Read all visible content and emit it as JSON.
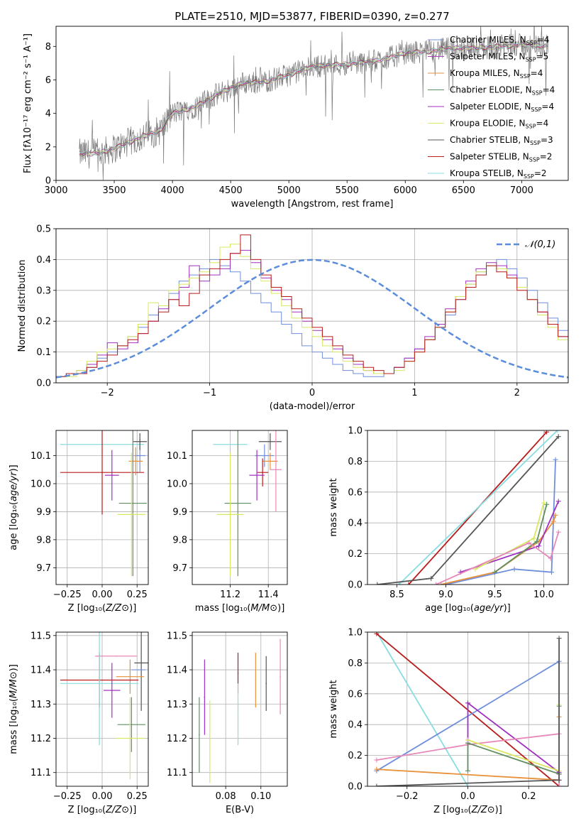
{
  "figure_title": "PLATE=2510, MJD=53877, FIBERID=0390, z=0.277",
  "palette": {
    "chabrier_miles": "#6f8fdc",
    "salpeter_miles": "#b040c0",
    "kroupa_miles": "#e8903a",
    "chabrier_elodie": "#5f8f5f",
    "salpeter_elodie": "#a030c0",
    "kroupa_elodie": "#d8e860",
    "chabrier_stelib": "#555555",
    "salpeter_stelib": "#b81c1c",
    "kroupa_stelib": "#88dde0",
    "pink": "#e888b8",
    "lime": "#b8d840",
    "gaussian": "#5b8ddb"
  },
  "chart_data": [
    {
      "id": "spectrum",
      "type": "line",
      "xlabel": "wavelength [Angstrom, rest frame]",
      "ylabel": "Flux [f_λ 10^-17 erg cm^-2 s^-1 A^-1]",
      "xlim": [
        3000,
        7400
      ],
      "ylim": [
        0,
        9.2
      ],
      "xticks": [
        3000,
        3500,
        4000,
        4500,
        5000,
        5500,
        6000,
        6500,
        7000
      ],
      "yticks": [
        0,
        2,
        4,
        6,
        8
      ],
      "grid": false,
      "legend_position": "upper-right",
      "legend": [
        "Chabrier MILES, N_SSP=4",
        "Salpeter MILES, N_SSP=5",
        "Kroupa MILES, N_SSP=4",
        "Chabrier ELODIE, N_SSP=4",
        "Salpeter ELODIE, N_SSP=4",
        "Kroupa ELODIE, N_SSP=4",
        "Chabrier STELIB, N_SSP=3",
        "Salpeter STELIB, N_SSP=2",
        "Kroupa STELIB, N_SSP=2"
      ],
      "continuum": {
        "x": [
          3200,
          3350,
          3500,
          3700,
          3900,
          4000,
          4200,
          4400,
          4600,
          4800,
          5000,
          5200,
          5400,
          5600,
          5800,
          6000,
          6200,
          6400,
          6600,
          6800,
          7000,
          7200
        ],
        "y": [
          1.6,
          1.6,
          1.9,
          2.5,
          3.0,
          4.0,
          4.4,
          5.2,
          5.8,
          5.9,
          6.3,
          6.8,
          6.9,
          7.0,
          7.2,
          7.6,
          7.7,
          7.9,
          7.9,
          8.0,
          8.1,
          8.0
        ]
      }
    },
    {
      "id": "residuals",
      "type": "line",
      "xlabel": "(data-model)/error",
      "ylabel": "Normed distribution",
      "xlim": [
        -2.5,
        2.5
      ],
      "ylim": [
        0,
        0.5
      ],
      "xticks": [
        -2,
        -1,
        0,
        1,
        2
      ],
      "yticks": [
        0.0,
        0.1,
        0.2,
        0.3,
        0.4,
        0.5
      ],
      "grid": true,
      "legend_position": "upper-right",
      "legend": [
        "𝒩(0,1)"
      ],
      "bin_width": 0.1,
      "histograms": [
        {
          "color": "chabrier_miles",
          "values": [
            0.02,
            0.03,
            0.03,
            0.05,
            0.08,
            0.1,
            0.12,
            0.15,
            0.18,
            0.22,
            0.25,
            0.29,
            0.33,
            0.35,
            0.37,
            0.4,
            0.38,
            0.36,
            0.33,
            0.29,
            0.26,
            0.23,
            0.19,
            0.16,
            0.12,
            0.1,
            0.08,
            0.06,
            0.04,
            0.03,
            0.02,
            0.02,
            0.03,
            0.05,
            0.08,
            0.11,
            0.14,
            0.18,
            0.22,
            0.27,
            0.32,
            0.36,
            0.38,
            0.4,
            0.37,
            0.34,
            0.3,
            0.26,
            0.21,
            0.17
          ]
        },
        {
          "color": "salpeter_elodie",
          "values": [
            0.02,
            0.03,
            0.04,
            0.06,
            0.09,
            0.13,
            0.11,
            0.13,
            0.16,
            0.2,
            0.24,
            0.27,
            0.31,
            0.38,
            0.33,
            0.35,
            0.37,
            0.42,
            0.43,
            0.39,
            0.34,
            0.3,
            0.27,
            0.23,
            0.2,
            0.17,
            0.14,
            0.11,
            0.08,
            0.06,
            0.04,
            0.03,
            0.03,
            0.05,
            0.08,
            0.11,
            0.15,
            0.19,
            0.24,
            0.28,
            0.33,
            0.37,
            0.39,
            0.38,
            0.35,
            0.31,
            0.27,
            0.23,
            0.19,
            0.15
          ]
        },
        {
          "color": "kroupa_elodie",
          "values": [
            0.02,
            0.02,
            0.04,
            0.07,
            0.1,
            0.11,
            0.12,
            0.15,
            0.19,
            0.26,
            0.25,
            0.3,
            0.32,
            0.34,
            0.36,
            0.39,
            0.44,
            0.45,
            0.41,
            0.37,
            0.33,
            0.29,
            0.25,
            0.21,
            0.18,
            0.15,
            0.12,
            0.1,
            0.07,
            0.05,
            0.04,
            0.03,
            0.03,
            0.04,
            0.07,
            0.1,
            0.14,
            0.18,
            0.23,
            0.28,
            0.32,
            0.36,
            0.38,
            0.37,
            0.34,
            0.31,
            0.27,
            0.22,
            0.18,
            0.14
          ]
        },
        {
          "color": "salpeter_stelib",
          "values": [
            0.02,
            0.03,
            0.03,
            0.05,
            0.07,
            0.09,
            0.12,
            0.14,
            0.16,
            0.2,
            0.23,
            0.27,
            0.25,
            0.29,
            0.35,
            0.37,
            0.4,
            0.42,
            0.48,
            0.4,
            0.35,
            0.31,
            0.28,
            0.24,
            0.21,
            0.18,
            0.15,
            0.12,
            0.09,
            0.07,
            0.05,
            0.04,
            0.03,
            0.05,
            0.07,
            0.1,
            0.14,
            0.18,
            0.23,
            0.27,
            0.31,
            0.35,
            0.38,
            0.36,
            0.34,
            0.3,
            0.27,
            0.23,
            0.19,
            0.15
          ]
        }
      ],
      "gaussian": {
        "mean": 0,
        "sigma": 1
      }
    },
    {
      "id": "age-vs-z",
      "type": "scatter",
      "xlabel": "Z [log10(Z/Z☉)]",
      "ylabel": "age [log10(age/yr)]",
      "xlim": [
        -0.33,
        0.33
      ],
      "ylim": [
        9.64,
        10.19
      ],
      "xticks": [
        -0.25,
        0.0,
        0.25
      ],
      "yticks": [
        9.7,
        9.8,
        9.9,
        10.0,
        10.1
      ],
      "grid": true,
      "points": [
        {
          "color": "kroupa_stelib",
          "x": 0.0,
          "xerr": 0.3,
          "y": 10.14,
          "yerr": 0.0
        },
        {
          "color": "salpeter_stelib",
          "x": 0.0,
          "xerr": 0.3,
          "y": 10.04,
          "yerr": 0.15
        },
        {
          "color": "chabrier_miles",
          "x": 0.27,
          "xerr": 0.04,
          "y": 10.1,
          "yerr": 0.06
        },
        {
          "color": "kroupa_miles",
          "x": 0.24,
          "xerr": 0.05,
          "y": 10.08,
          "yerr": 0.05
        },
        {
          "color": "chabrier_stelib",
          "x": 0.27,
          "xerr": 0.05,
          "y": 10.15,
          "yerr": 0.03
        },
        {
          "color": "salpeter_elodie",
          "x": 0.07,
          "xerr": 0.05,
          "y": 10.03,
          "yerr": 0.09
        },
        {
          "color": "chabrier_elodie",
          "x": 0.22,
          "xerr": 0.1,
          "y": 9.93,
          "yerr": 0.26
        },
        {
          "color": "kroupa_elodie",
          "x": 0.21,
          "xerr": 0.1,
          "y": 9.89,
          "yerr": 0.22
        }
      ]
    },
    {
      "id": "age-vs-mass",
      "type": "scatter",
      "xlabel": "mass [log10(M/M☉)]",
      "ylabel": "",
      "xlim": [
        11.0,
        11.5
      ],
      "ylim": [
        9.64,
        10.19
      ],
      "xticks": [
        11.2,
        11.4
      ],
      "yticks": [
        9.7,
        9.8,
        9.9,
        10.0,
        10.1
      ],
      "grid": true,
      "points": [
        {
          "color": "kroupa_stelib",
          "x": 11.2,
          "xerr": 0.09,
          "y": 10.14,
          "yerr": 0.0
        },
        {
          "color": "chabrier_miles",
          "x": 11.38,
          "xerr": 0.05,
          "y": 10.1,
          "yerr": 0.04
        },
        {
          "color": "kroupa_miles",
          "x": 11.41,
          "xerr": 0.04,
          "y": 10.08,
          "yerr": 0.03
        },
        {
          "color": "chabrier_stelib",
          "x": 11.41,
          "xerr": 0.06,
          "y": 10.15,
          "yerr": 0.03
        },
        {
          "color": "salpeter_stelib",
          "x": 11.37,
          "xerr": 0.03,
          "y": 10.04,
          "yerr": 0.05
        },
        {
          "color": "salpeter_elodie",
          "x": 11.34,
          "xerr": 0.04,
          "y": 10.03,
          "yerr": 0.09
        },
        {
          "color": "chabrier_elodie",
          "x": 11.24,
          "xerr": 0.07,
          "y": 9.93,
          "yerr": 0.26
        },
        {
          "color": "kroupa_elodie",
          "x": 11.2,
          "xerr": 0.07,
          "y": 9.89,
          "yerr": 0.22
        },
        {
          "color": "pink",
          "x": 11.44,
          "xerr": 0.03,
          "y": 10.05,
          "yerr": 0.15
        }
      ]
    },
    {
      "id": "massweight-vs-age",
      "type": "line",
      "xlabel": "age [log10(age/yr)]",
      "ylabel": "mass weight",
      "xlim": [
        8.2,
        10.25
      ],
      "ylim": [
        0,
        1
      ],
      "xticks": [
        8.5,
        9.0,
        9.5,
        10.0
      ],
      "yticks": [
        0.0,
        0.2,
        0.4,
        0.6,
        0.8,
        1.0
      ],
      "grid": true,
      "series": [
        {
          "color": "salpeter_stelib",
          "x": [
            8.62,
            10.03
          ],
          "y": [
            0.0,
            0.99
          ]
        },
        {
          "color": "kroupa_stelib",
          "x": [
            8.52,
            10.14
          ],
          "y": [
            0.0,
            1.0
          ]
        },
        {
          "color": "chabrier_stelib",
          "x": [
            8.3,
            8.85,
            10.15
          ],
          "y": [
            0.0,
            0.04,
            0.96
          ]
        },
        {
          "color": "chabrier_miles",
          "x": [
            9.0,
            9.7,
            10.08,
            10.12
          ],
          "y": [
            0.0,
            0.1,
            0.08,
            0.81
          ]
        },
        {
          "color": "kroupa_miles",
          "x": [
            8.95,
            9.5,
            9.95,
            10.1,
            10.12
          ],
          "y": [
            0.0,
            0.08,
            0.28,
            0.41,
            0.45
          ]
        },
        {
          "color": "salpeter_elodie",
          "x": [
            9.15,
            9.95,
            10.15
          ],
          "y": [
            0.08,
            0.25,
            0.54
          ]
        },
        {
          "color": "chabrier_elodie",
          "x": [
            9.5,
            9.93,
            10.03
          ],
          "y": [
            0.08,
            0.28,
            0.52
          ]
        },
        {
          "color": "kroupa_elodie",
          "x": [
            9.3,
            9.9,
            10.0
          ],
          "y": [
            0.1,
            0.3,
            0.53
          ]
        },
        {
          "color": "pink",
          "x": [
            8.9,
            9.85,
            10.07,
            10.15
          ],
          "y": [
            0.0,
            0.27,
            0.17,
            0.34
          ]
        }
      ]
    },
    {
      "id": "mass-vs-z",
      "type": "scatter",
      "xlabel": "Z [log10(Z/Z☉)]",
      "ylabel": "mass [log10(M/M☉)]",
      "xlim": [
        -0.33,
        0.33
      ],
      "ylim": [
        11.06,
        11.51
      ],
      "xticks": [
        -0.25,
        0.0,
        0.25
      ],
      "yticks": [
        11.1,
        11.2,
        11.3,
        11.4,
        11.5
      ],
      "grid": true,
      "points": [
        {
          "color": "pink",
          "x": 0.1,
          "xerr": 0.15,
          "y": 11.44,
          "yerr": 0.0
        },
        {
          "color": "chabrier_stelib",
          "x": 0.28,
          "xerr": 0.05,
          "y": 11.42,
          "yerr": 0.14
        },
        {
          "color": "chabrier_miles",
          "x": 0.26,
          "xerr": 0.05,
          "y": 11.4,
          "yerr": 0.0
        },
        {
          "color": "kroupa_miles",
          "x": 0.2,
          "xerr": 0.1,
          "y": 11.38,
          "yerr": 0.05
        },
        {
          "color": "salpeter_stelib",
          "x": -0.02,
          "xerr": 0.28,
          "y": 11.37,
          "yerr": 0.08
        },
        {
          "color": "kroupa_stelib",
          "x": -0.02,
          "xerr": 0.28,
          "y": 11.36,
          "yerr": 0.18
        },
        {
          "color": "salpeter_elodie",
          "x": 0.07,
          "xerr": 0.06,
          "y": 11.34,
          "yerr": 0.08
        },
        {
          "color": "chabrier_elodie",
          "x": 0.21,
          "xerr": 0.1,
          "y": 11.24,
          "yerr": 0.08
        },
        {
          "color": "kroupa_elodie",
          "x": 0.2,
          "xerr": 0.1,
          "y": 11.2,
          "yerr": 0.12
        }
      ]
    },
    {
      "id": "mass-vs-ebv",
      "type": "scatter",
      "xlabel": "E(B-V)",
      "ylabel": "",
      "xlim": [
        0.061,
        0.115
      ],
      "ylim": [
        11.06,
        11.51
      ],
      "xticks": [
        0.08,
        0.1
      ],
      "yticks": [
        11.1,
        11.2,
        11.3,
        11.4,
        11.5
      ],
      "grid": true,
      "points": [
        {
          "color": "chabrier_elodie",
          "x": 0.065,
          "y": 11.21,
          "yerr": 0.11
        },
        {
          "color": "salpeter_elodie",
          "x": 0.068,
          "y": 11.32,
          "yerr": 0.11
        },
        {
          "color": "kroupa_elodie",
          "x": 0.071,
          "y": 11.19,
          "yerr": 0.12
        },
        {
          "color": "salpeter_stelib",
          "x": 0.087,
          "y": 11.39,
          "yerr": 0.06
        },
        {
          "color": "kroupa_stelib",
          "x": 0.087,
          "y": 11.27,
          "yerr": 0.09
        },
        {
          "color": "kroupa_miles",
          "x": 0.097,
          "y": 11.37,
          "yerr": 0.08
        },
        {
          "color": "chabrier_stelib",
          "x": 0.103,
          "y": 11.36,
          "yerr": 0.08
        },
        {
          "color": "pink",
          "x": 0.111,
          "y": 11.38,
          "yerr": 0.11
        }
      ]
    },
    {
      "id": "massweight-vs-z",
      "type": "line",
      "xlabel": "Z [log10(Z/Z☉)]",
      "ylabel": "mass weight",
      "xlim": [
        -0.33,
        0.33
      ],
      "ylim": [
        0,
        1
      ],
      "xticks": [
        -0.2,
        0.0,
        0.2
      ],
      "yticks": [
        0.0,
        0.2,
        0.4,
        0.6,
        0.8,
        1.0
      ],
      "grid": true,
      "series": [
        {
          "color": "kroupa_stelib",
          "x": [
            -0.3,
            0.0
          ],
          "y": [
            1.0,
            0.0
          ]
        },
        {
          "color": "salpeter_stelib",
          "x": [
            -0.3,
            0.3
          ],
          "y": [
            0.99,
            0.0
          ]
        },
        {
          "color": "chabrier_miles",
          "x": [
            -0.3,
            0.3,
            0.3
          ],
          "y": [
            0.1,
            0.81,
            0.08
          ]
        },
        {
          "color": "salpeter_elodie",
          "x": [
            0.0,
            0.0,
            0.3,
            0.3
          ],
          "y": [
            0.28,
            0.54,
            0.09,
            0.08
          ]
        },
        {
          "color": "pink",
          "x": [
            -0.3,
            0.0,
            0.3,
            0.3
          ],
          "y": [
            0.17,
            0.27,
            0.34,
            0.0
          ]
        },
        {
          "color": "kroupa_miles",
          "x": [
            -0.3,
            0.3,
            0.3
          ],
          "y": [
            0.11,
            0.04,
            0.45
          ]
        },
        {
          "color": "chabrier_elodie",
          "x": [
            0.0,
            0.0,
            0.3,
            0.3
          ],
          "y": [
            0.1,
            0.28,
            0.08,
            0.52
          ]
        },
        {
          "color": "kroupa_elodie",
          "x": [
            0.0,
            0.3,
            0.3
          ],
          "y": [
            0.3,
            0.1,
            0.53
          ]
        },
        {
          "color": "chabrier_stelib",
          "x": [
            -0.3,
            0.3,
            0.3
          ],
          "y": [
            0.0,
            0.04,
            0.96
          ]
        }
      ]
    }
  ]
}
